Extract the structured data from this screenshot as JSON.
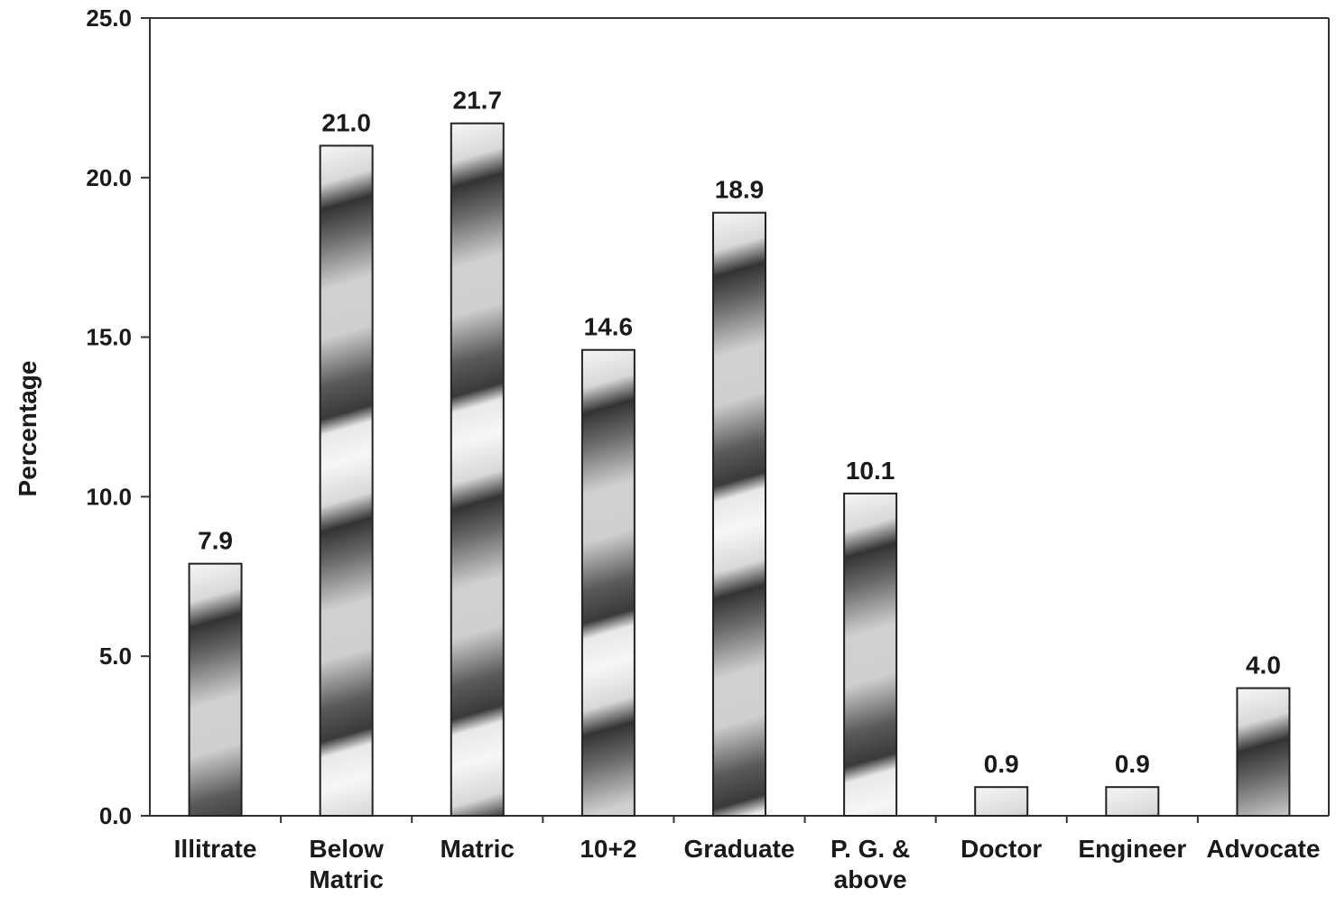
{
  "chart_data": {
    "type": "bar",
    "title": "",
    "xlabel": "",
    "ylabel": "Percentage",
    "ylim": [
      0,
      25
    ],
    "yticks": [
      "0.0",
      "5.0",
      "10.0",
      "15.0",
      "20.0",
      "25.0"
    ],
    "categories": [
      [
        "Illitrate"
      ],
      [
        "Below",
        "Matric"
      ],
      [
        "Matric"
      ],
      [
        "10+2"
      ],
      [
        "Graduate"
      ],
      [
        "P. G. &",
        "above"
      ],
      [
        "Doctor"
      ],
      [
        "Engineer"
      ],
      [
        "Advocate"
      ]
    ],
    "values": [
      7.9,
      21.0,
      21.7,
      14.6,
      18.9,
      10.1,
      0.9,
      0.9,
      4.0
    ],
    "data_labels": [
      "7.9",
      "21.0",
      "21.7",
      "14.6",
      "18.9",
      "10.1",
      "0.9",
      "0.9",
      "4.0"
    ],
    "grid": false,
    "legend": "none",
    "colors": {
      "axis": "#333333",
      "bar_outline": "#222222",
      "bar_dark": "#3a3a3a",
      "bar_light": "#f4f4f4",
      "bar_mid": "#cfcfcf"
    }
  }
}
